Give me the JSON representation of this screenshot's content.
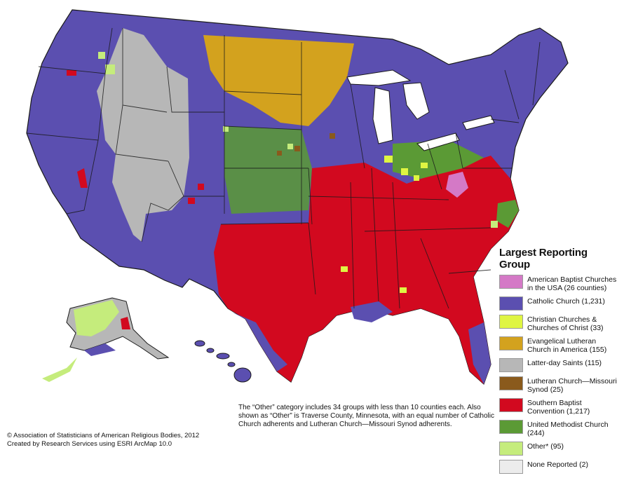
{
  "colors": {
    "catholic": "#5b4fb0",
    "southern_baptist": "#d2091f",
    "latter_day_saints": "#b7b7b7",
    "evangelical_lutheran": "#d3a21e",
    "united_methodist": "#5b9a35",
    "missouri_synod": "#8a5a1c",
    "christian_churches": "#dff542",
    "american_baptist": "#d479c6",
    "other": "#c5ec7c",
    "none_reported": "#ececec",
    "boundary": "#1a1a1a",
    "water": "#ffffff"
  },
  "legend": {
    "title": "Largest Reporting Group",
    "items": [
      {
        "label": "American Baptist Churches in the USA (26 counties)",
        "color": "#d479c6"
      },
      {
        "label": "Catholic Church (1,231)",
        "color": "#5b4fb0"
      },
      {
        "label": "Christian Churches & Churches of Christ (33)",
        "color": "#dff542"
      },
      {
        "label": "Evangelical Lutheran Church in America (155)",
        "color": "#d3a21e"
      },
      {
        "label": "Latter-day Saints (115)",
        "color": "#b7b7b7"
      },
      {
        "label": "Lutheran Church—Missouri Synod (25)",
        "color": "#8a5a1c"
      },
      {
        "label": "Southern Baptist Convention (1,217)",
        "color": "#d2091f"
      },
      {
        "label": "United Methodist Church (244)",
        "color": "#5b9a35"
      },
      {
        "label": "Other* (95)",
        "color": "#c5ec7c"
      },
      {
        "label": "None Reported (2)",
        "color": "#ececec"
      }
    ]
  },
  "note": "The “Other” category includes 34 groups with less than 10 counties each. Also shown as “Other” is Traverse County, Minnesota, with an equal number of Catholic Church adherents and Lutheran Church—Missouri Synod adherents.",
  "credits": {
    "line1": "© Association of Statisticians of American Religious Bodies, 2012",
    "line2": "Created by Research Services using ESRI ArcMap 10.0"
  }
}
